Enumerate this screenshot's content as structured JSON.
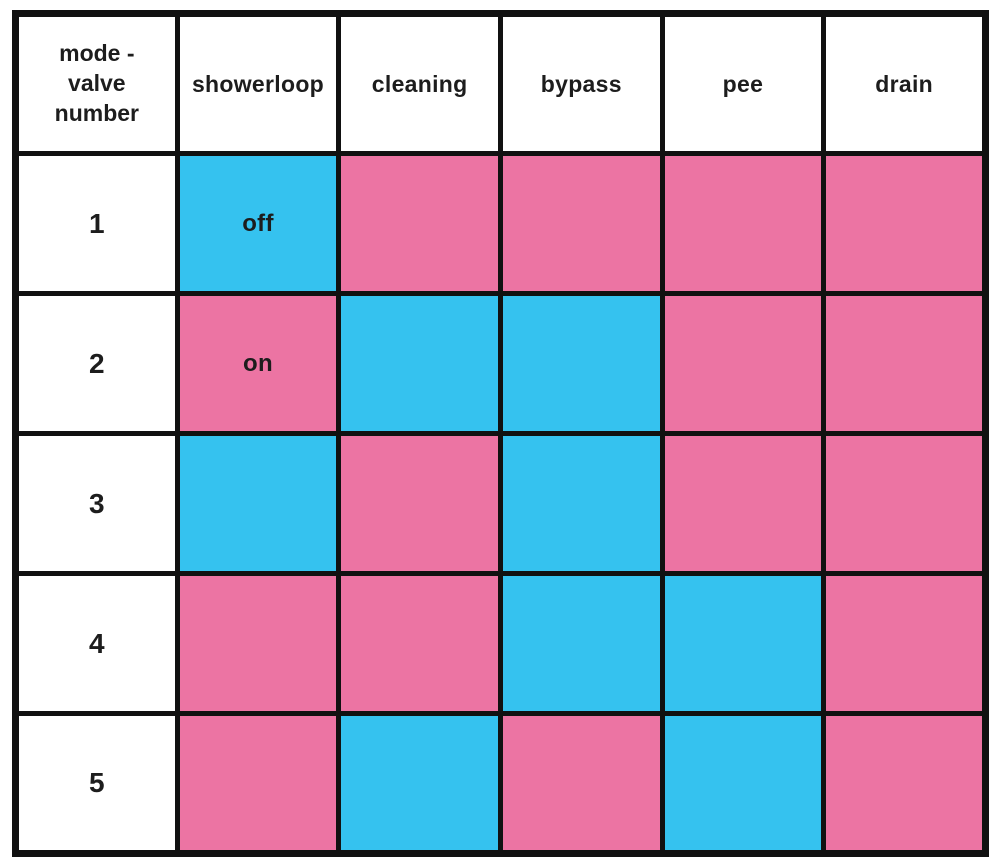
{
  "colors": {
    "on": "#ec74a3",
    "off": "#35c2ef",
    "grid": "#111111",
    "header_bg": "#ffffff",
    "page_bg": "#ffffff",
    "text": "#1d1d1d"
  },
  "table": {
    "corner_header": "mode -\nvalve\nnumber",
    "column_headers": [
      "showerloop",
      "cleaning",
      "bypass",
      "pee",
      "drain"
    ],
    "rows": [
      {
        "valve": "1",
        "states": [
          "off",
          "on",
          "on",
          "on",
          "on"
        ],
        "labels": [
          "off",
          "",
          "",
          "",
          ""
        ]
      },
      {
        "valve": "2",
        "states": [
          "on",
          "off",
          "off",
          "on",
          "on"
        ],
        "labels": [
          "on",
          "",
          "",
          "",
          ""
        ]
      },
      {
        "valve": "3",
        "states": [
          "off",
          "on",
          "off",
          "on",
          "on"
        ],
        "labels": [
          "",
          "",
          "",
          "",
          ""
        ]
      },
      {
        "valve": "4",
        "states": [
          "on",
          "on",
          "off",
          "off",
          "on"
        ],
        "labels": [
          "",
          "",
          "",
          "",
          ""
        ]
      },
      {
        "valve": "5",
        "states": [
          "on",
          "off",
          "on",
          "off",
          "on"
        ],
        "labels": [
          "",
          "",
          "",
          "",
          ""
        ]
      }
    ]
  },
  "chart_data": {
    "type": "table",
    "title": "",
    "columns": [
      "mode - valve number",
      "showerloop",
      "cleaning",
      "bypass",
      "pee",
      "drain"
    ],
    "rows": [
      {
        "valve": "1",
        "showerloop": "off",
        "cleaning": "on",
        "bypass": "on",
        "pee": "on",
        "drain": "on"
      },
      {
        "valve": "2",
        "showerloop": "on",
        "cleaning": "off",
        "bypass": "off",
        "pee": "on",
        "drain": "on"
      },
      {
        "valve": "3",
        "showerloop": "off",
        "cleaning": "on",
        "bypass": "off",
        "pee": "on",
        "drain": "on"
      },
      {
        "valve": "4",
        "showerloop": "on",
        "cleaning": "on",
        "bypass": "off",
        "pee": "off",
        "drain": "on"
      },
      {
        "valve": "5",
        "showerloop": "on",
        "cleaning": "off",
        "bypass": "on",
        "pee": "off",
        "drain": "on"
      }
    ],
    "legend": {
      "off": {
        "color": "#35c2ef",
        "label": "off",
        "labeled_in": "row 1 showerloop cell"
      },
      "on": {
        "color": "#ec74a3",
        "label": "on",
        "labeled_in": "row 2 showerloop cell"
      }
    },
    "layout": {
      "grid": true,
      "grid_color": "#111111",
      "header_row": true
    }
  }
}
